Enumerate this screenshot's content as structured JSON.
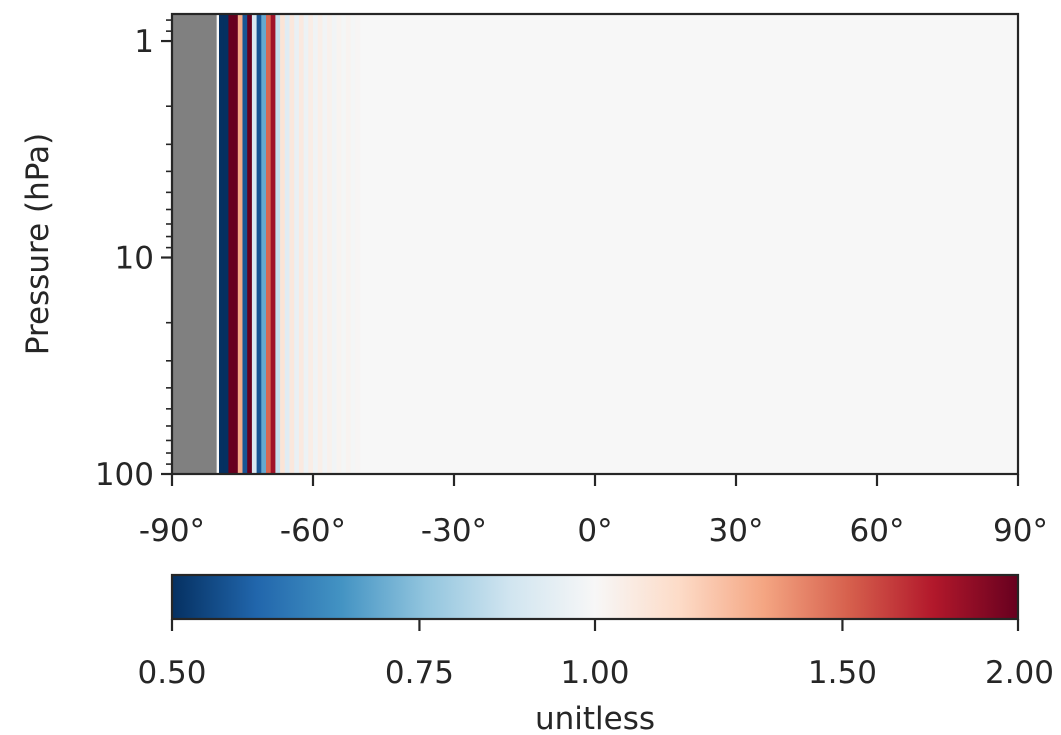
{
  "chart_data": {
    "type": "heatmap",
    "title": "",
    "xlabel": "",
    "ylabel": "Pressure (hPa)",
    "x_range": [
      -90,
      90
    ],
    "x_ticks": [
      -90,
      -60,
      -30,
      0,
      30,
      60,
      90
    ],
    "x_tick_labels": [
      "-90°",
      "-60°",
      "-30°",
      "0°",
      "30°",
      "60°",
      "90°"
    ],
    "y_scale": "log",
    "y_range": [
      100,
      0.75
    ],
    "y_ticks": [
      1,
      10,
      100
    ],
    "y_tick_labels": [
      "1",
      "10",
      "100"
    ],
    "no_data_color": "#808080",
    "no_data_lat_range": [
      -90,
      -80.5
    ],
    "columns": [
      {
        "lat": -79.5,
        "value": 0.5
      },
      {
        "lat": -78.5,
        "value": 0.5
      },
      {
        "lat": -77.5,
        "value": 2.0
      },
      {
        "lat": -76.5,
        "value": 2.0
      },
      {
        "lat": -75.5,
        "value": 1.3
      },
      {
        "lat": -74.5,
        "value": 0.55
      },
      {
        "lat": -73.5,
        "value": 2.0
      },
      {
        "lat": -72.5,
        "value": 0.9
      },
      {
        "lat": -71.5,
        "value": 0.55
      },
      {
        "lat": -70.5,
        "value": 0.7
      },
      {
        "lat": -69.5,
        "value": 1.5
      },
      {
        "lat": -68.5,
        "value": 1.8
      },
      {
        "lat": -67.5,
        "value": 0.85
      },
      {
        "lat": -66.5,
        "value": 1.1
      },
      {
        "lat": -65.5,
        "value": 0.92
      },
      {
        "lat": -64.5,
        "value": 1.08
      },
      {
        "lat": -63.5,
        "value": 0.95
      },
      {
        "lat": -62.5,
        "value": 1.07
      },
      {
        "lat": -61.5,
        "value": 0.96
      },
      {
        "lat": -60.5,
        "value": 1.05
      },
      {
        "lat": -59.5,
        "value": 0.97
      },
      {
        "lat": -58.5,
        "value": 1.04
      },
      {
        "lat": -57.5,
        "value": 0.98
      },
      {
        "lat": -56.5,
        "value": 1.03
      },
      {
        "lat": -55.5,
        "value": 0.98
      },
      {
        "lat": -54.5,
        "value": 1.02
      },
      {
        "lat": -53.5,
        "value": 0.99
      },
      {
        "lat": -52.5,
        "value": 1.02
      },
      {
        "lat": -51.5,
        "value": 0.99
      },
      {
        "lat": -50.5,
        "value": 1.01
      }
    ],
    "elsewhere_value": 1.0,
    "colorbar": {
      "label": "unitless",
      "colormap": "RdBu_r",
      "scale": "log",
      "range": [
        0.5,
        2.0
      ],
      "ticks": [
        0.5,
        0.75,
        1.0,
        1.5,
        2.0
      ],
      "tick_labels": [
        "0.50",
        "0.75",
        "1.00",
        "1.50",
        "2.00"
      ],
      "colors": [
        "#053061",
        "#2166ac",
        "#4393c3",
        "#92c5de",
        "#d1e5f0",
        "#f7f7f7",
        "#fddbc7",
        "#f4a582",
        "#d6604d",
        "#b2182b",
        "#67001f"
      ]
    }
  }
}
